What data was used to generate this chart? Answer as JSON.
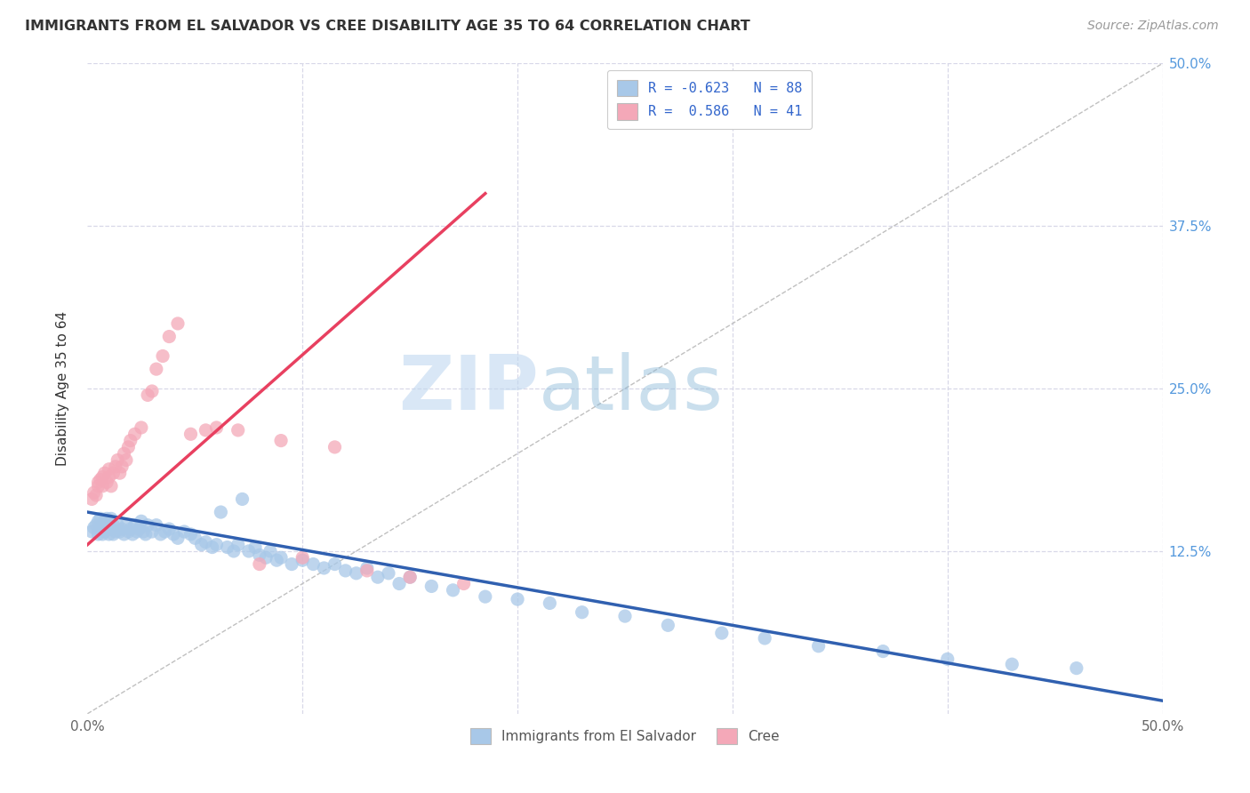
{
  "title": "IMMIGRANTS FROM EL SALVADOR VS CREE DISABILITY AGE 35 TO 64 CORRELATION CHART",
  "source": "Source: ZipAtlas.com",
  "ylabel": "Disability Age 35 to 64",
  "x_min": 0.0,
  "x_max": 0.5,
  "y_min": 0.0,
  "y_max": 0.5,
  "blue_color": "#a8c8e8",
  "pink_color": "#f4a8b8",
  "blue_line_color": "#3060b0",
  "pink_line_color": "#e84060",
  "legend_blue_label": "R = -0.623   N = 88",
  "legend_pink_label": "R =  0.586   N = 41",
  "legend_bottom_blue": "Immigrants from El Salvador",
  "legend_bottom_pink": "Cree",
  "background_color": "#ffffff",
  "grid_color": "#d8d8e8",
  "blue_line_x0": 0.0,
  "blue_line_y0": 0.155,
  "blue_line_x1": 0.5,
  "blue_line_y1": 0.01,
  "pink_line_x0": 0.0,
  "pink_line_y0": 0.13,
  "pink_line_x1": 0.185,
  "pink_line_y1": 0.4,
  "blue_scatter_x": [
    0.002,
    0.003,
    0.004,
    0.005,
    0.005,
    0.006,
    0.006,
    0.007,
    0.007,
    0.008,
    0.008,
    0.009,
    0.009,
    0.01,
    0.01,
    0.011,
    0.011,
    0.012,
    0.012,
    0.013,
    0.014,
    0.015,
    0.016,
    0.017,
    0.018,
    0.019,
    0.02,
    0.021,
    0.022,
    0.023,
    0.024,
    0.025,
    0.026,
    0.027,
    0.028,
    0.03,
    0.032,
    0.034,
    0.036,
    0.038,
    0.04,
    0.042,
    0.045,
    0.048,
    0.05,
    0.053,
    0.055,
    0.058,
    0.06,
    0.062,
    0.065,
    0.068,
    0.07,
    0.072,
    0.075,
    0.078,
    0.08,
    0.083,
    0.085,
    0.088,
    0.09,
    0.095,
    0.1,
    0.105,
    0.11,
    0.115,
    0.12,
    0.125,
    0.13,
    0.135,
    0.14,
    0.145,
    0.15,
    0.16,
    0.17,
    0.185,
    0.2,
    0.215,
    0.23,
    0.25,
    0.27,
    0.295,
    0.315,
    0.34,
    0.37,
    0.4,
    0.43,
    0.46
  ],
  "blue_scatter_y": [
    0.14,
    0.143,
    0.145,
    0.138,
    0.148,
    0.142,
    0.15,
    0.138,
    0.145,
    0.14,
    0.148,
    0.142,
    0.15,
    0.138,
    0.145,
    0.142,
    0.15,
    0.138,
    0.145,
    0.14,
    0.145,
    0.14,
    0.142,
    0.138,
    0.145,
    0.14,
    0.142,
    0.138,
    0.145,
    0.14,
    0.142,
    0.148,
    0.14,
    0.138,
    0.145,
    0.14,
    0.145,
    0.138,
    0.14,
    0.142,
    0.138,
    0.135,
    0.14,
    0.138,
    0.135,
    0.13,
    0.132,
    0.128,
    0.13,
    0.155,
    0.128,
    0.125,
    0.13,
    0.165,
    0.125,
    0.128,
    0.122,
    0.12,
    0.125,
    0.118,
    0.12,
    0.115,
    0.118,
    0.115,
    0.112,
    0.115,
    0.11,
    0.108,
    0.112,
    0.105,
    0.108,
    0.1,
    0.105,
    0.098,
    0.095,
    0.09,
    0.088,
    0.085,
    0.078,
    0.075,
    0.068,
    0.062,
    0.058,
    0.052,
    0.048,
    0.042,
    0.038,
    0.035
  ],
  "pink_scatter_x": [
    0.002,
    0.003,
    0.004,
    0.005,
    0.005,
    0.006,
    0.007,
    0.007,
    0.008,
    0.009,
    0.01,
    0.01,
    0.011,
    0.012,
    0.013,
    0.014,
    0.015,
    0.016,
    0.017,
    0.018,
    0.019,
    0.02,
    0.022,
    0.025,
    0.028,
    0.03,
    0.032,
    0.035,
    0.038,
    0.042,
    0.048,
    0.055,
    0.06,
    0.07,
    0.08,
    0.09,
    0.1,
    0.115,
    0.13,
    0.15,
    0.175
  ],
  "pink_scatter_y": [
    0.165,
    0.17,
    0.168,
    0.175,
    0.178,
    0.18,
    0.175,
    0.182,
    0.185,
    0.178,
    0.182,
    0.188,
    0.175,
    0.185,
    0.19,
    0.195,
    0.185,
    0.19,
    0.2,
    0.195,
    0.205,
    0.21,
    0.215,
    0.22,
    0.245,
    0.248,
    0.265,
    0.275,
    0.29,
    0.3,
    0.215,
    0.218,
    0.22,
    0.218,
    0.115,
    0.21,
    0.12,
    0.205,
    0.11,
    0.105,
    0.1
  ]
}
